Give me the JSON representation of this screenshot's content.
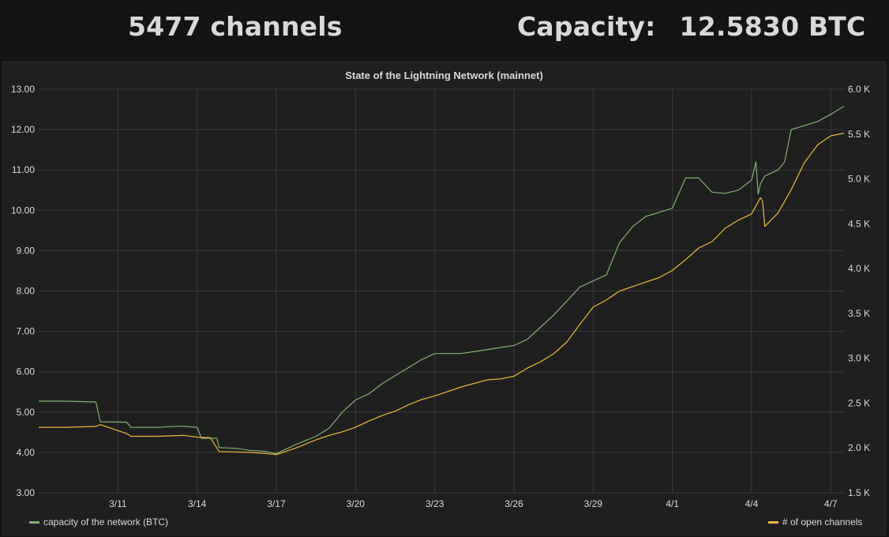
{
  "stats": {
    "channels_text": "5477 channels",
    "capacity_label": "Capacity:",
    "capacity_value": "12.5830 BTC"
  },
  "colors": {
    "capacity_series": "#7eb26d",
    "channels_series": "#eab839",
    "grid": "#3a3a3c",
    "text": "#d8d9da"
  },
  "chart_data": {
    "type": "line",
    "title": "State of the Lightning Network (mainnet)",
    "xlabel": "",
    "ylabel": "",
    "x_axis": {
      "type": "date",
      "range": [
        "2018-03-08",
        "2018-04-07T12:00"
      ],
      "ticks": [
        "3/11",
        "3/14",
        "3/17",
        "3/20",
        "3/23",
        "3/26",
        "3/29",
        "4/1",
        "4/4",
        "4/7"
      ],
      "tick_dates": [
        "2018-03-11",
        "2018-03-14",
        "2018-03-17",
        "2018-03-20",
        "2018-03-23",
        "2018-03-26",
        "2018-03-29",
        "2018-04-01",
        "2018-04-04",
        "2018-04-07"
      ]
    },
    "y_left": {
      "range": [
        3,
        13
      ],
      "ticks": [
        "3.00",
        "4.00",
        "5.00",
        "6.00",
        "7.00",
        "8.00",
        "9.00",
        "10.00",
        "11.00",
        "12.00",
        "13.00"
      ],
      "tick_values": [
        3,
        4,
        5,
        6,
        7,
        8,
        9,
        10,
        11,
        12,
        13
      ]
    },
    "y_right": {
      "range": [
        1500,
        6000
      ],
      "ticks": [
        "1.5 K",
        "2.0 K",
        "2.5 K",
        "3.0 K",
        "3.5 K",
        "4.0 K",
        "4.5 K",
        "5.0 K",
        "5.5 K",
        "6.0 K"
      ],
      "tick_values": [
        1500,
        2000,
        2500,
        3000,
        3500,
        4000,
        4500,
        5000,
        5500,
        6000
      ]
    },
    "grid": true,
    "legend_placement": "bottom",
    "series": [
      {
        "name": "capacity of the network (BTC)",
        "axis": "left",
        "color": "#7eb26d",
        "x": [
          "2018-03-08T00:00",
          "2018-03-09T00:00",
          "2018-03-10T04:00",
          "2018-03-10T08:00",
          "2018-03-11T08:00",
          "2018-03-11T12:00",
          "2018-03-12T12:00",
          "2018-03-13T00:00",
          "2018-03-13T12:00",
          "2018-03-14T00:00",
          "2018-03-14T04:00",
          "2018-03-14T18:00",
          "2018-03-14T20:00",
          "2018-03-15T12:00",
          "2018-03-16T00:00",
          "2018-03-16T12:00",
          "2018-03-17T00:00",
          "2018-03-17T18:00",
          "2018-03-18T12:00",
          "2018-03-19T00:00",
          "2018-03-19T12:00",
          "2018-03-20T00:00",
          "2018-03-20T12:00",
          "2018-03-21T00:00",
          "2018-03-21T12:00",
          "2018-03-22T00:00",
          "2018-03-22T12:00",
          "2018-03-23T00:00",
          "2018-03-24T00:00",
          "2018-03-25T00:00",
          "2018-03-25T12:00",
          "2018-03-26T00:00",
          "2018-03-26T12:00",
          "2018-03-27T00:00",
          "2018-03-27T12:00",
          "2018-03-28T00:00",
          "2018-03-28T12:00",
          "2018-03-29T00:00",
          "2018-03-29T12:00",
          "2018-03-30T00:00",
          "2018-03-30T12:00",
          "2018-03-31T00:00",
          "2018-03-31T12:00",
          "2018-04-01T00:00",
          "2018-04-01T12:00",
          "2018-04-02T00:00",
          "2018-04-02T12:00",
          "2018-04-03T00:00",
          "2018-04-03T12:00",
          "2018-04-04T00:00",
          "2018-04-04T04:00",
          "2018-04-04T06:00",
          "2018-04-04T08:00",
          "2018-04-04T12:00",
          "2018-04-05T00:00",
          "2018-04-05T06:00",
          "2018-04-05T12:00",
          "2018-04-06T00:00",
          "2018-04-06T12:00",
          "2018-04-07T00:00",
          "2018-04-07T12:00"
        ],
        "values": [
          5.27,
          5.27,
          5.25,
          4.76,
          4.75,
          4.62,
          4.62,
          4.64,
          4.65,
          4.62,
          4.35,
          4.35,
          4.12,
          4.1,
          4.05,
          4.03,
          3.97,
          4.2,
          4.4,
          4.6,
          5.0,
          5.3,
          5.45,
          5.7,
          5.9,
          6.1,
          6.3,
          6.45,
          6.45,
          6.55,
          6.6,
          6.65,
          6.8,
          7.1,
          7.4,
          7.75,
          8.1,
          8.25,
          8.4,
          9.2,
          9.6,
          9.85,
          9.95,
          10.05,
          10.8,
          10.8,
          10.45,
          10.42,
          10.5,
          10.75,
          11.2,
          10.4,
          10.65,
          10.85,
          11.0,
          11.2,
          12.0,
          12.1,
          12.2,
          12.38,
          12.58
        ]
      },
      {
        "name": "# of open channels",
        "axis": "right",
        "color": "#eab839",
        "x": [
          "2018-03-08T00:00",
          "2018-03-09T00:00",
          "2018-03-10T04:00",
          "2018-03-10T08:00",
          "2018-03-11T08:00",
          "2018-03-11T12:00",
          "2018-03-12T12:00",
          "2018-03-13T00:00",
          "2018-03-13T12:00",
          "2018-03-14T00:00",
          "2018-03-14T12:00",
          "2018-03-14T20:00",
          "2018-03-15T12:00",
          "2018-03-16T00:00",
          "2018-03-16T12:00",
          "2018-03-17T00:00",
          "2018-03-17T18:00",
          "2018-03-18T12:00",
          "2018-03-19T00:00",
          "2018-03-19T12:00",
          "2018-03-20T00:00",
          "2018-03-20T12:00",
          "2018-03-21T00:00",
          "2018-03-21T12:00",
          "2018-03-22T00:00",
          "2018-03-22T12:00",
          "2018-03-23T00:00",
          "2018-03-24T00:00",
          "2018-03-25T00:00",
          "2018-03-25T12:00",
          "2018-03-26T00:00",
          "2018-03-26T12:00",
          "2018-03-27T00:00",
          "2018-03-27T12:00",
          "2018-03-28T00:00",
          "2018-03-28T12:00",
          "2018-03-29T00:00",
          "2018-03-29T12:00",
          "2018-03-30T00:00",
          "2018-03-30T12:00",
          "2018-03-31T00:00",
          "2018-03-31T12:00",
          "2018-04-01T00:00",
          "2018-04-01T12:00",
          "2018-04-02T00:00",
          "2018-04-02T12:00",
          "2018-04-03T00:00",
          "2018-04-03T12:00",
          "2018-04-04T00:00",
          "2018-04-04T08:00",
          "2018-04-04T10:00",
          "2018-04-04T12:00",
          "2018-04-05T00:00",
          "2018-04-05T12:00",
          "2018-04-06T00:00",
          "2018-04-06T12:00",
          "2018-04-07T00:00",
          "2018-04-07T12:00"
        ],
        "values": [
          2230,
          2230,
          2240,
          2260,
          2160,
          2130,
          2130,
          2135,
          2140,
          2120,
          2115,
          1960,
          1955,
          1950,
          1940,
          1925,
          2000,
          2090,
          2140,
          2180,
          2230,
          2300,
          2360,
          2410,
          2480,
          2540,
          2580,
          2680,
          2760,
          2770,
          2800,
          2890,
          2960,
          3050,
          3180,
          3380,
          3570,
          3650,
          3750,
          3800,
          3850,
          3900,
          3980,
          4100,
          4230,
          4300,
          4450,
          4540,
          4610,
          4790,
          4750,
          4470,
          4620,
          4880,
          5180,
          5380,
          5480,
          5510
        ]
      }
    ]
  }
}
